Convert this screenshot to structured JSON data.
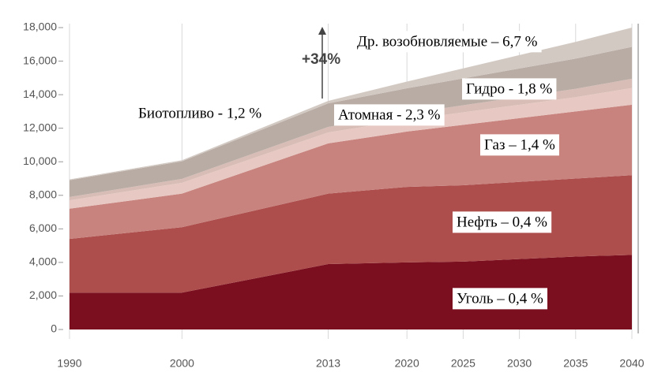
{
  "chart_data": {
    "type": "stacked_area",
    "x": [
      1990,
      2000,
      2013,
      2020,
      2025,
      2030,
      2035,
      2040
    ],
    "xlim": [
      1990,
      2040
    ],
    "xticks": [
      1990,
      2000,
      2013,
      2020,
      2025,
      2030,
      2035,
      2040
    ],
    "ylim": [
      0,
      18000
    ],
    "yticks": [
      0,
      {
        "value": 2000,
        "label": "2,000"
      },
      {
        "value": 4000,
        "label": "4,000"
      },
      {
        "value": 6000,
        "label": "6,000"
      },
      {
        "value": 8000,
        "label": "8,000"
      },
      {
        "value": 10000,
        "label": "10,000"
      },
      {
        "value": 12000,
        "label": "12,000"
      },
      {
        "value": 14000,
        "label": "14,000"
      },
      {
        "value": 16000,
        "label": "16,000"
      },
      {
        "value": 18000,
        "label": "18,000"
      }
    ],
    "grid": true,
    "series": [
      {
        "name": "Уголь – 0,4 %",
        "color": "#7b0f1f",
        "values": [
          2200,
          2200,
          3900,
          4000,
          4050,
          4200,
          4350,
          4450
        ]
      },
      {
        "name": "Нефть – 0,4 %",
        "color": "#ad4e4c",
        "values": [
          3200,
          3900,
          4200,
          4500,
          4550,
          4600,
          4650,
          4750
        ]
      },
      {
        "name": "Газ – 1,4 %",
        "color": "#c8837e",
        "values": [
          1800,
          2000,
          3000,
          3300,
          3600,
          3800,
          4000,
          4200
        ]
      },
      {
        "name": "Атомная - 2,3 %",
        "color": "#e8c8c2",
        "values": [
          500,
          650,
          650,
          700,
          750,
          800,
          850,
          1000
        ]
      },
      {
        "name": "Гидро - 1,8 %",
        "color": "#d7bdb6",
        "values": [
          200,
          230,
          330,
          380,
          420,
          460,
          500,
          550
        ]
      },
      {
        "name": "Биотопливо - 1,2 %",
        "color": "#b9aca4",
        "values": [
          1000,
          1050,
          1400,
          1500,
          1600,
          1700,
          1800,
          1900
        ]
      },
      {
        "name": "Др. возобновляемые – 6,7 %",
        "color": "#d2c9c3",
        "values": [
          50,
          60,
          150,
          400,
          600,
          800,
          1000,
          1150
        ]
      }
    ],
    "annotations": [
      "+34%"
    ]
  }
}
